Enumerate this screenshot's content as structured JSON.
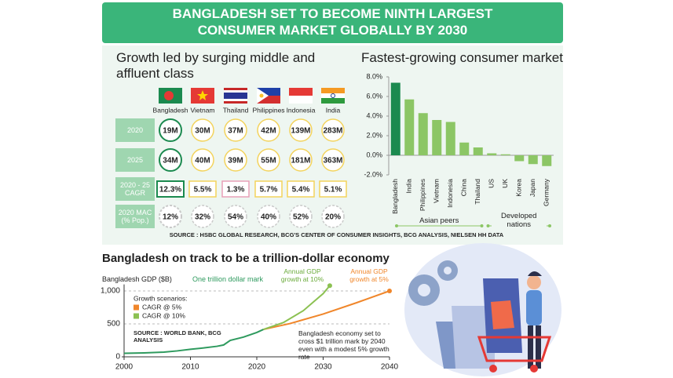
{
  "header": {
    "title": "BANGLADESH SET TO BECOME NINTH LARGEST CONSUMER MARKET GLOBALLY BY 2030"
  },
  "table": {
    "title": "Growth led by surging middle and affluent class",
    "columns": [
      "Bangladesh",
      "Vietnam",
      "Thailand",
      "Philippines",
      "Indonesia",
      "India"
    ],
    "rows": [
      {
        "label": "2020",
        "values": [
          "19M",
          "30M",
          "37M",
          "42M",
          "139M",
          "283M"
        ]
      },
      {
        "label": "2025",
        "values": [
          "34M",
          "40M",
          "39M",
          "55M",
          "181M",
          "363M"
        ]
      },
      {
        "label": "2020 - 25 CAGR",
        "values": [
          "12.3%",
          "5.5%",
          "1.3%",
          "5.7%",
          "5.4%",
          "5.1%"
        ]
      },
      {
        "label": "2020 MAC (% Pop.)",
        "values": [
          "12%",
          "32%",
          "54%",
          "40%",
          "52%",
          "20%"
        ]
      }
    ],
    "source": "SOURCE : HSBC GLOBAL RESEARCH, BCG'S CENTER OF CONSUMER INSIGHTS, BCG ANALYSIS, NIELSEN HH DATA"
  },
  "chart_data": [
    {
      "type": "bar",
      "title": "Fastest-growing consumer market",
      "categories": [
        "Bangladesh",
        "India",
        "Philippines",
        "Vietnam",
        "Indonesia",
        "China",
        "Thailand",
        "US",
        "UK",
        "Korea",
        "Japan",
        "Germany"
      ],
      "values": [
        7.4,
        5.7,
        4.3,
        3.6,
        3.4,
        1.3,
        0.8,
        0.2,
        0.1,
        -0.6,
        -0.9,
        -1.1
      ],
      "colors": [
        "#1b8a4f",
        "#8cc665",
        "#8cc665",
        "#8cc665",
        "#8cc665",
        "#8cc665",
        "#8cc665",
        "#8cc665",
        "#8cc665",
        "#8cc665",
        "#8cc665",
        "#8cc665"
      ],
      "ylim": [
        -2,
        8
      ],
      "yticks": [
        {
          "value": -2,
          "label": "-2.0%"
        },
        {
          "value": 0,
          "label": "0.0%"
        },
        {
          "value": 2,
          "label": "2.0%"
        },
        {
          "value": 4,
          "label": "4.0%"
        },
        {
          "value": 6,
          "label": "6.0%"
        },
        {
          "value": 8,
          "label": "8.0%"
        }
      ],
      "annotations": [
        "Asian peers",
        "Developed nations"
      ]
    },
    {
      "type": "line",
      "title": "Bangladesh on track to be a trillion-dollar economy",
      "ylabel": "Bangladesh GDP ($B)",
      "xlim": [
        2000,
        2040
      ],
      "xticks": [
        2000,
        2010,
        2020,
        2030,
        2040
      ],
      "ylim": [
        0,
        1100
      ],
      "yticks": [
        0,
        500,
        {
          "value": 1000,
          "label": "1,000"
        }
      ],
      "grid": true,
      "legend_title": "Growth scenarios:",
      "series": [
        {
          "color": "#2e9a5e",
          "x": [
            2000,
            2003,
            2006,
            2008,
            2010,
            2012,
            2014,
            2015,
            2016,
            2018,
            2020,
            2021
          ],
          "values": [
            53,
            60,
            72,
            90,
            115,
            135,
            160,
            180,
            250,
            300,
            370,
            416
          ]
        },
        {
          "name": "CAGR @ 5%",
          "color": "#f0862a",
          "x": [
            2021,
            2025,
            2030,
            2035,
            2040
          ],
          "values": [
            416,
            505,
            650,
            820,
            1000
          ]
        },
        {
          "name": "CAGR @ 10%",
          "color": "#8cc152",
          "x": [
            2021,
            2024,
            2027,
            2030,
            2031
          ],
          "values": [
            416,
            520,
            700,
            960,
            1080
          ]
        }
      ],
      "annotations": [
        "One trillion dollar mark",
        "Annual GDP growth at 10%",
        "Annual GDP growth at 5%",
        "Bangladesh economy set to cross $1 trillion mark by 2040 even with a modest 5% growth rate"
      ],
      "source": "SOURCE : WORLD BANK, BCG ANALYSIS"
    }
  ]
}
